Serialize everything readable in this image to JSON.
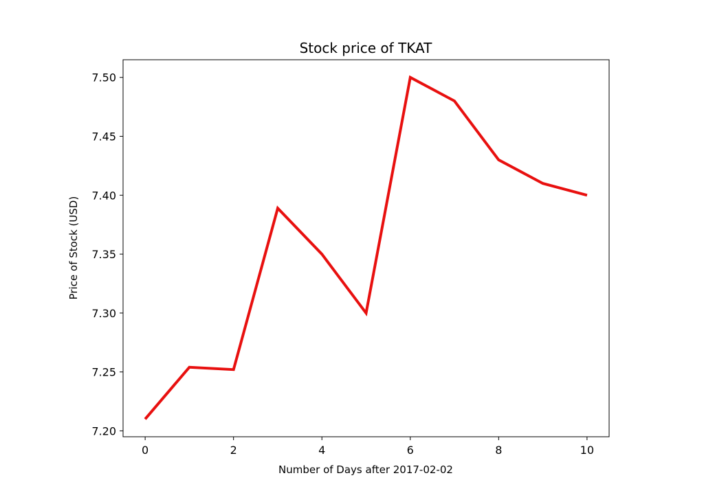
{
  "chart_data": {
    "type": "line",
    "title": "Stock price of TKAT",
    "xlabel": "Number of Days after 2017-02-02",
    "ylabel": "Price of Stock (USD)",
    "xlim": [
      -0.5,
      10.5
    ],
    "ylim": [
      7.195,
      7.515
    ],
    "xticks": [
      0,
      2,
      4,
      6,
      8,
      10
    ],
    "xtick_labels": [
      "0",
      "2",
      "4",
      "6",
      "8",
      "10"
    ],
    "yticks": [
      7.2,
      7.25,
      7.3,
      7.35,
      7.4,
      7.45,
      7.5
    ],
    "ytick_labels": [
      "7.20",
      "7.25",
      "7.30",
      "7.35",
      "7.40",
      "7.45",
      "7.50"
    ],
    "grid": false,
    "series": [
      {
        "color": "#e8100f",
        "x": [
          0,
          1,
          2,
          3,
          4,
          5,
          6,
          7,
          8,
          9,
          10
        ],
        "y": [
          7.21,
          7.254,
          7.252,
          7.389,
          7.35,
          7.3,
          7.5,
          7.48,
          7.43,
          7.41,
          7.4
        ]
      }
    ]
  }
}
